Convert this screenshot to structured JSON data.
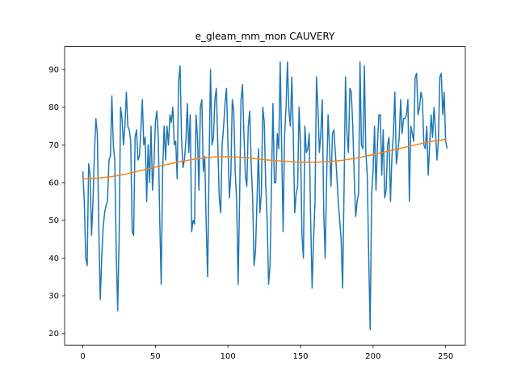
{
  "chart_data": {
    "type": "line",
    "title": "e_gleam_mm_mon CAUVERY",
    "xlim": [
      -12.55,
      263.55
    ],
    "xticks": [
      0,
      50,
      100,
      150,
      200,
      250
    ],
    "ylim": [
      16.9,
      96.1
    ],
    "yticks": [
      20,
      30,
      40,
      50,
      60,
      70,
      80,
      90
    ],
    "grid": false,
    "series": [
      {
        "color": "#1f77b4",
        "x": [
          0,
          1,
          2,
          3,
          4,
          5,
          6,
          7,
          8,
          9,
          10,
          11,
          12,
          13,
          14,
          15,
          16,
          17,
          18,
          19,
          20,
          21,
          22,
          23,
          24,
          25,
          26,
          27,
          28,
          29,
          30,
          31,
          32,
          33,
          34,
          35,
          36,
          37,
          38,
          39,
          40,
          41,
          42,
          43,
          44,
          45,
          46,
          47,
          48,
          49,
          50,
          51,
          52,
          53,
          54,
          55,
          56,
          57,
          58,
          59,
          60,
          61,
          62,
          63,
          64,
          65,
          66,
          67,
          68,
          69,
          70,
          71,
          72,
          73,
          74,
          75,
          76,
          77,
          78,
          79,
          80,
          81,
          82,
          83,
          84,
          85,
          86,
          87,
          88,
          89,
          90,
          91,
          92,
          93,
          94,
          95,
          96,
          97,
          98,
          99,
          100,
          101,
          102,
          103,
          104,
          105,
          106,
          107,
          108,
          109,
          110,
          111,
          112,
          113,
          114,
          115,
          116,
          117,
          118,
          119,
          120,
          121,
          122,
          123,
          124,
          125,
          126,
          127,
          128,
          129,
          130,
          131,
          132,
          133,
          134,
          135,
          136,
          137,
          138,
          139,
          140,
          141,
          142,
          143,
          144,
          145,
          146,
          147,
          148,
          149,
          150,
          151,
          152,
          153,
          154,
          155,
          156,
          157,
          158,
          159,
          160,
          161,
          162,
          163,
          164,
          165,
          166,
          167,
          168,
          169,
          170,
          171,
          172,
          173,
          174,
          175,
          176,
          177,
          178,
          179,
          180,
          181,
          182,
          183,
          184,
          185,
          186,
          187,
          188,
          189,
          190,
          191,
          192,
          193,
          194,
          195,
          196,
          197,
          198,
          199,
          200,
          201,
          202,
          203,
          204,
          205,
          206,
          207,
          208,
          209,
          210,
          211,
          212,
          213,
          214,
          215,
          216,
          217,
          218,
          219,
          220,
          221,
          222,
          223,
          224,
          225,
          226,
          227,
          228,
          229,
          230,
          231,
          232,
          233,
          234,
          235,
          236,
          237,
          238,
          239,
          240,
          241,
          242,
          243,
          244,
          245,
          246,
          247,
          248,
          249,
          250,
          251
        ],
        "values": [
          63,
          55,
          40,
          38,
          65,
          62,
          46,
          55,
          68,
          77,
          73,
          48,
          29,
          40,
          48,
          52,
          54,
          55,
          66,
          67,
          83,
          70,
          66,
          42,
          26,
          45,
          80,
          77,
          70,
          75,
          84,
          75,
          74,
          71,
          47,
          46,
          72,
          74,
          66,
          67,
          74,
          82,
          70,
          72,
          55,
          70,
          60,
          75,
          58,
          65,
          76,
          79,
          72,
          50,
          33,
          63,
          75,
          66,
          75,
          70,
          78,
          76,
          80,
          70,
          71,
          61,
          87,
          91,
          72,
          64,
          66,
          71,
          81,
          68,
          78,
          47,
          50,
          49,
          78,
          72,
          58,
          80,
          82,
          63,
          67,
          49,
          35,
          65,
          90,
          70,
          72,
          82,
          85,
          70,
          56,
          52,
          70,
          75,
          81,
          85,
          70,
          56,
          62,
          82,
          79,
          63,
          55,
          33,
          55,
          82,
          86,
          73,
          62,
          59,
          75,
          79,
          65,
          56,
          38,
          42,
          55,
          69,
          52,
          57,
          80,
          76,
          60,
          50,
          33,
          38,
          60,
          81,
          60,
          60,
          73,
          69,
          92,
          70,
          47,
          72,
          80,
          92,
          79,
          75,
          88,
          73,
          52,
          57,
          59,
          80,
          70,
          46,
          40,
          75,
          68,
          69,
          73,
          50,
          32,
          45,
          55,
          88,
          80,
          68,
          73,
          82,
          52,
          40,
          61,
          78,
          69,
          59,
          73,
          74,
          68,
          62,
          55,
          50,
          45,
          32,
          58,
          88,
          73,
          68,
          85,
          84,
          75,
          62,
          51,
          55,
          57,
          92,
          70,
          69,
          91,
          68,
          62,
          40,
          21,
          57,
          63,
          75,
          58,
          70,
          78,
          78,
          62,
          74,
          56,
          58,
          70,
          72,
          55,
          67,
          73,
          84,
          65,
          68,
          72,
          82,
          73,
          77,
          77,
          78,
          82,
          55,
          75,
          73,
          71,
          88,
          89,
          78,
          80,
          84,
          82,
          70,
          69,
          75,
          62,
          70,
          78,
          72,
          80,
          74,
          66,
          71,
          88,
          89,
          78,
          84,
          71,
          69
        ]
      },
      {
        "color": "#ff7f0e",
        "x": [
          0,
          10,
          20,
          30,
          40,
          50,
          60,
          70,
          80,
          90,
          100,
          110,
          120,
          130,
          140,
          150,
          160,
          170,
          180,
          190,
          200,
          210,
          220,
          230,
          240,
          250
        ],
        "values": [
          61,
          61.2,
          61.6,
          62.3,
          63.2,
          64.1,
          65,
          65.8,
          66.4,
          66.8,
          66.9,
          66.7,
          66.3,
          65.9,
          65.6,
          65.4,
          65.4,
          65.6,
          66,
          66.6,
          67.4,
          68.3,
          69.2,
          70.1,
          70.9,
          71.5
        ]
      }
    ]
  }
}
